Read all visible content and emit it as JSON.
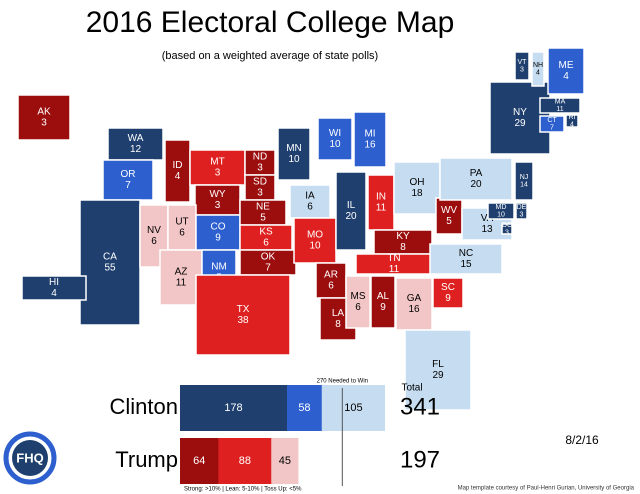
{
  "title": "2016 Electoral College Map",
  "subtitle": "(based on a weighted average of state polls)",
  "states": [
    {
      "abbr": "WA",
      "votes": 12,
      "color": "#1f3f6e"
    },
    {
      "abbr": "OR",
      "votes": 7,
      "color": "#2d5fcf"
    },
    {
      "abbr": "CA",
      "votes": 55,
      "color": "#1f3f6e"
    },
    {
      "abbr": "NV",
      "votes": 6,
      "color": "#f2c6c6"
    },
    {
      "abbr": "ID",
      "votes": 4,
      "color": "#9c0d0d"
    },
    {
      "abbr": "MT",
      "votes": 3,
      "color": "#df2020"
    },
    {
      "abbr": "WY",
      "votes": 3,
      "color": "#9c0d0d"
    },
    {
      "abbr": "UT",
      "votes": 6,
      "color": "#f2c6c6"
    },
    {
      "abbr": "AZ",
      "votes": 11,
      "color": "#f2c6c6"
    },
    {
      "abbr": "CO",
      "votes": 9,
      "color": "#2d5fcf"
    },
    {
      "abbr": "NM",
      "votes": 5,
      "color": "#2d5fcf"
    },
    {
      "abbr": "ND",
      "votes": 3,
      "color": "#9c0d0d"
    },
    {
      "abbr": "SD",
      "votes": 3,
      "color": "#9c0d0d"
    },
    {
      "abbr": "NE",
      "votes": 5,
      "color": "#9c0d0d"
    },
    {
      "abbr": "KS",
      "votes": 6,
      "color": "#df2020"
    },
    {
      "abbr": "OK",
      "votes": 7,
      "color": "#9c0d0d"
    },
    {
      "abbr": "TX",
      "votes": 38,
      "color": "#df2020"
    },
    {
      "abbr": "MN",
      "votes": 10,
      "color": "#1f3f6e"
    },
    {
      "abbr": "IA",
      "votes": 6,
      "color": "#c6ddf1"
    },
    {
      "abbr": "MO",
      "votes": 10,
      "color": "#df2020"
    },
    {
      "abbr": "AR",
      "votes": 6,
      "color": "#9c0d0d"
    },
    {
      "abbr": "LA",
      "votes": 8,
      "color": "#9c0d0d"
    },
    {
      "abbr": "WI",
      "votes": 10,
      "color": "#2d5fcf"
    },
    {
      "abbr": "IL",
      "votes": 20,
      "color": "#1f3f6e"
    },
    {
      "abbr": "MI",
      "votes": 16,
      "color": "#2d5fcf"
    },
    {
      "abbr": "IN",
      "votes": 11,
      "color": "#df2020"
    },
    {
      "abbr": "OH",
      "votes": 18,
      "color": "#c6ddf1"
    },
    {
      "abbr": "KY",
      "votes": 8,
      "color": "#9c0d0d"
    },
    {
      "abbr": "TN",
      "votes": 11,
      "color": "#df2020"
    },
    {
      "abbr": "MS",
      "votes": 6,
      "color": "#f2c6c6"
    },
    {
      "abbr": "AL",
      "votes": 9,
      "color": "#9c0d0d"
    },
    {
      "abbr": "GA",
      "votes": 16,
      "color": "#f2c6c6"
    },
    {
      "abbr": "SC",
      "votes": 9,
      "color": "#df2020"
    },
    {
      "abbr": "NC",
      "votes": 15,
      "color": "#c6ddf1"
    },
    {
      "abbr": "FL",
      "votes": 29,
      "color": "#c6ddf1"
    },
    {
      "abbr": "WV",
      "votes": 5,
      "color": "#9c0d0d"
    },
    {
      "abbr": "VA",
      "votes": 13,
      "color": "#c6ddf1"
    },
    {
      "abbr": "PA",
      "votes": 20,
      "color": "#c6ddf1"
    },
    {
      "abbr": "NY",
      "votes": 29,
      "color": "#1f3f6e"
    },
    {
      "abbr": "VT",
      "votes": 3,
      "color": "#1f3f6e"
    },
    {
      "abbr": "NH",
      "votes": 4,
      "color": "#c6ddf1"
    },
    {
      "abbr": "ME",
      "votes": 4,
      "color": "#2d5fcf"
    },
    {
      "abbr": "MA",
      "votes": 11,
      "color": "#1f3f6e"
    },
    {
      "abbr": "RI",
      "votes": 4,
      "color": "#1f3f6e"
    },
    {
      "abbr": "CT",
      "votes": 7,
      "color": "#2d5fcf"
    },
    {
      "abbr": "NJ",
      "votes": 14,
      "color": "#1f3f6e"
    },
    {
      "abbr": "DE",
      "votes": 3,
      "color": "#1f3f6e"
    },
    {
      "abbr": "MD",
      "votes": 10,
      "color": "#1f3f6e"
    },
    {
      "abbr": "DC",
      "votes": 3,
      "color": "#1f3f6e"
    },
    {
      "abbr": "AK",
      "votes": 3,
      "color": "#9c0d0d"
    },
    {
      "abbr": "HI",
      "votes": 4,
      "color": "#1f3f6e"
    }
  ],
  "tally": {
    "threshold": 270,
    "threshold_label": "270 Needed to Win",
    "total_header": "Total",
    "candidates": [
      {
        "name": "Clinton",
        "segments": [
          178,
          58,
          105
        ],
        "colors": [
          "#1f3f6e",
          "#2d5fcf",
          "#c6ddf1"
        ],
        "total": 341
      },
      {
        "name": "Trump",
        "segments": [
          64,
          88,
          45
        ],
        "colors": [
          "#9c0d0d",
          "#df2020",
          "#f2c6c6"
        ],
        "total": 197
      }
    ],
    "legend": "Strong: >10%  |  Lean: 5-10%  |  Toss Up: <5%"
  },
  "date": "8/2/16",
  "logo": "FHQ",
  "credit": "Map template courtesy of Paul-Henri Gurian, University of Georgia"
}
